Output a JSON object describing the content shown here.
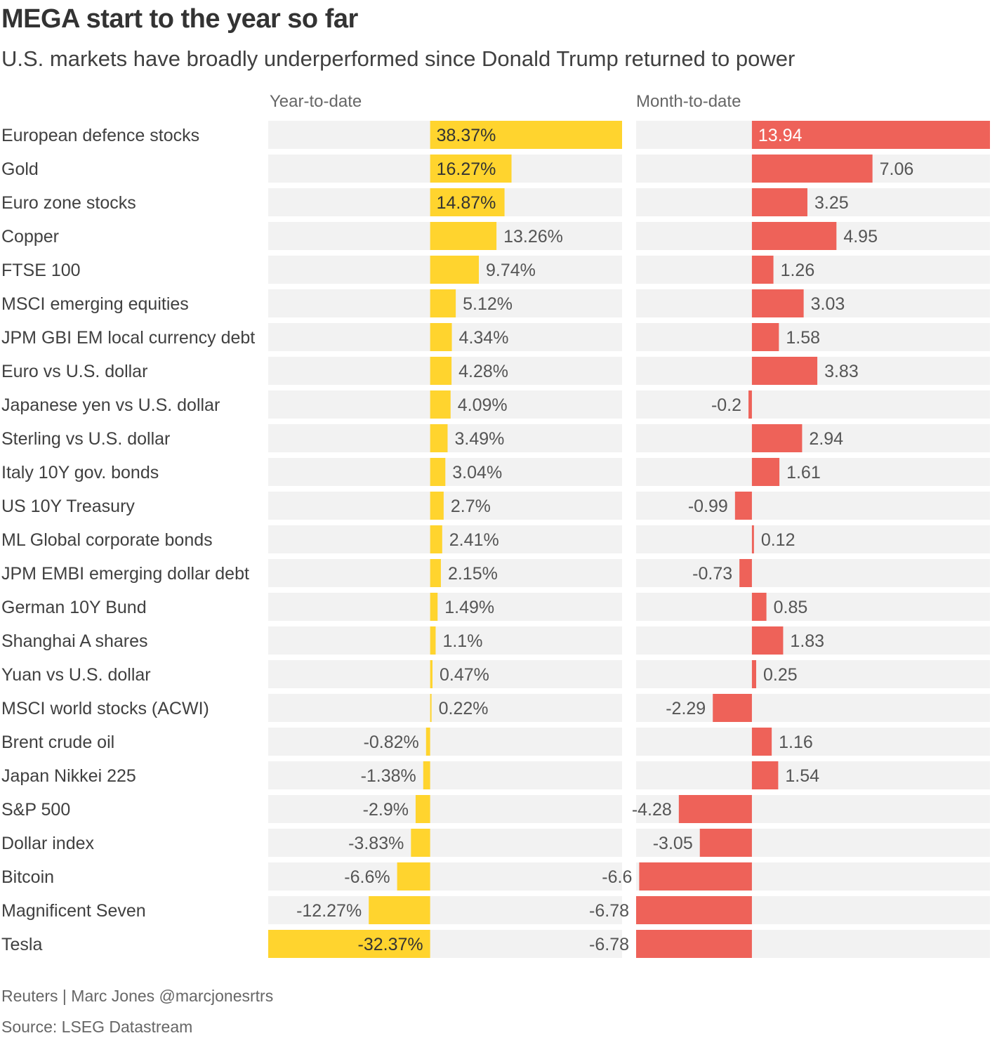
{
  "title": "MEGA start to the year so far",
  "subtitle": "U.S. markets have broadly underperformed since Donald Trump returned to power",
  "footer": {
    "credit": "Reuters | Marc Jones @marcjonesrtrs",
    "source": "Source: LSEG Datastream"
  },
  "colors": {
    "ytd_bar": "#ffd42e",
    "mtd_bar": "#ee6259",
    "row_bg": "#f2f2f2",
    "label_text": "#404040",
    "value_text": "#555555"
  },
  "chart_data": [
    {
      "type": "bar",
      "orientation": "horizontal",
      "panel_title": "Year-to-date",
      "value_suffix": "%",
      "xlim": [
        -32.37,
        38.37
      ],
      "categories": [
        "European defence stocks",
        "Gold",
        "Euro zone stocks",
        "Copper",
        "FTSE 100",
        "MSCI emerging equities",
        "JPM GBI EM local currency debt",
        "Euro vs U.S. dollar",
        "Japanese yen vs U.S. dollar",
        "Sterling vs U.S. dollar",
        "Italy 10Y gov. bonds",
        "US 10Y Treasury",
        "ML Global corporate bonds",
        "JPM EMBI emerging dollar debt",
        "German 10Y Bund",
        "Shanghai A shares",
        "Yuan vs U.S. dollar",
        "MSCI world stocks (ACWI)",
        "Brent crude oil",
        "Japan Nikkei 225",
        "S&P 500",
        "Dollar index",
        "Bitcoin",
        "Magnificent Seven",
        "Tesla"
      ],
      "values": [
        38.37,
        16.27,
        14.87,
        13.26,
        9.74,
        5.12,
        4.34,
        4.28,
        4.09,
        3.49,
        3.04,
        2.7,
        2.41,
        2.15,
        1.49,
        1.1,
        0.47,
        0.22,
        -0.82,
        -1.38,
        -2.9,
        -3.83,
        -6.6,
        -12.27,
        -32.37
      ]
    },
    {
      "type": "bar",
      "orientation": "horizontal",
      "panel_title": "Month-to-date",
      "value_suffix": "",
      "xlim": [
        -6.78,
        13.94
      ],
      "categories": [
        "European defence stocks",
        "Gold",
        "Euro zone stocks",
        "Copper",
        "FTSE 100",
        "MSCI emerging equities",
        "JPM GBI EM local currency debt",
        "Euro vs U.S. dollar",
        "Japanese yen vs U.S. dollar",
        "Sterling vs U.S. dollar",
        "Italy 10Y gov. bonds",
        "US 10Y Treasury",
        "ML Global corporate bonds",
        "JPM EMBI emerging dollar debt",
        "German 10Y Bund",
        "Shanghai A shares",
        "Yuan vs U.S. dollar",
        "MSCI world stocks (ACWI)",
        "Brent crude oil",
        "Japan Nikkei 225",
        "S&P 500",
        "Dollar index",
        "Bitcoin",
        "Magnificent Seven",
        "Tesla"
      ],
      "values": [
        13.94,
        7.06,
        3.25,
        4.95,
        1.26,
        3.03,
        1.58,
        3.83,
        -0.2,
        2.94,
        1.61,
        -0.99,
        0.12,
        -0.73,
        0.85,
        1.83,
        0.25,
        -2.29,
        1.16,
        1.54,
        -4.28,
        -3.05,
        -6.6,
        -6.78,
        -6.78
      ]
    }
  ]
}
